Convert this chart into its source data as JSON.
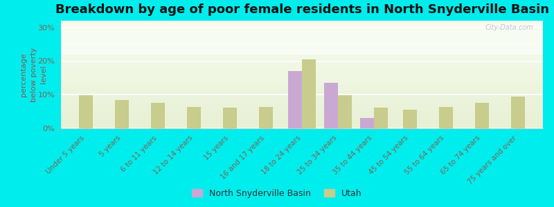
{
  "title": "Breakdown by age of poor female residents in North Snyderville Basin",
  "categories": [
    "Under 5 years",
    "5 years",
    "6 to 11 years",
    "12 to 14 years",
    "15 years",
    "16 and 17 years",
    "18 to 24 years",
    "25 to 34 years",
    "35 to 44 years",
    "45 to 54 years",
    "55 to 64 years",
    "65 to 74 years",
    "75 years and over"
  ],
  "nsb_values": [
    null,
    null,
    null,
    null,
    null,
    null,
    17.0,
    13.5,
    3.0,
    null,
    null,
    null,
    null
  ],
  "utah_values": [
    9.9,
    8.5,
    7.5,
    6.3,
    6.2,
    6.4,
    20.5,
    9.9,
    6.2,
    5.5,
    6.3,
    7.5,
    9.5
  ],
  "nsb_color": "#c9a8d4",
  "utah_color": "#c8cc8c",
  "ylabel": "percentage\nbelow poverty\nlevel",
  "ylim": [
    0,
    32
  ],
  "yticks": [
    0,
    10,
    20,
    30
  ],
  "ytick_labels": [
    "0%",
    "10%",
    "20%",
    "30%"
  ],
  "outer_bg": "#00eded",
  "bar_width": 0.38,
  "legend_nsb": "North Snyderville Basin",
  "legend_utah": "Utah",
  "title_fontsize": 13,
  "axis_fontsize": 7.5,
  "ylabel_fontsize": 8,
  "ylabel_color": "#885555",
  "tick_color": "#776655",
  "watermark": "City-Data.com"
}
